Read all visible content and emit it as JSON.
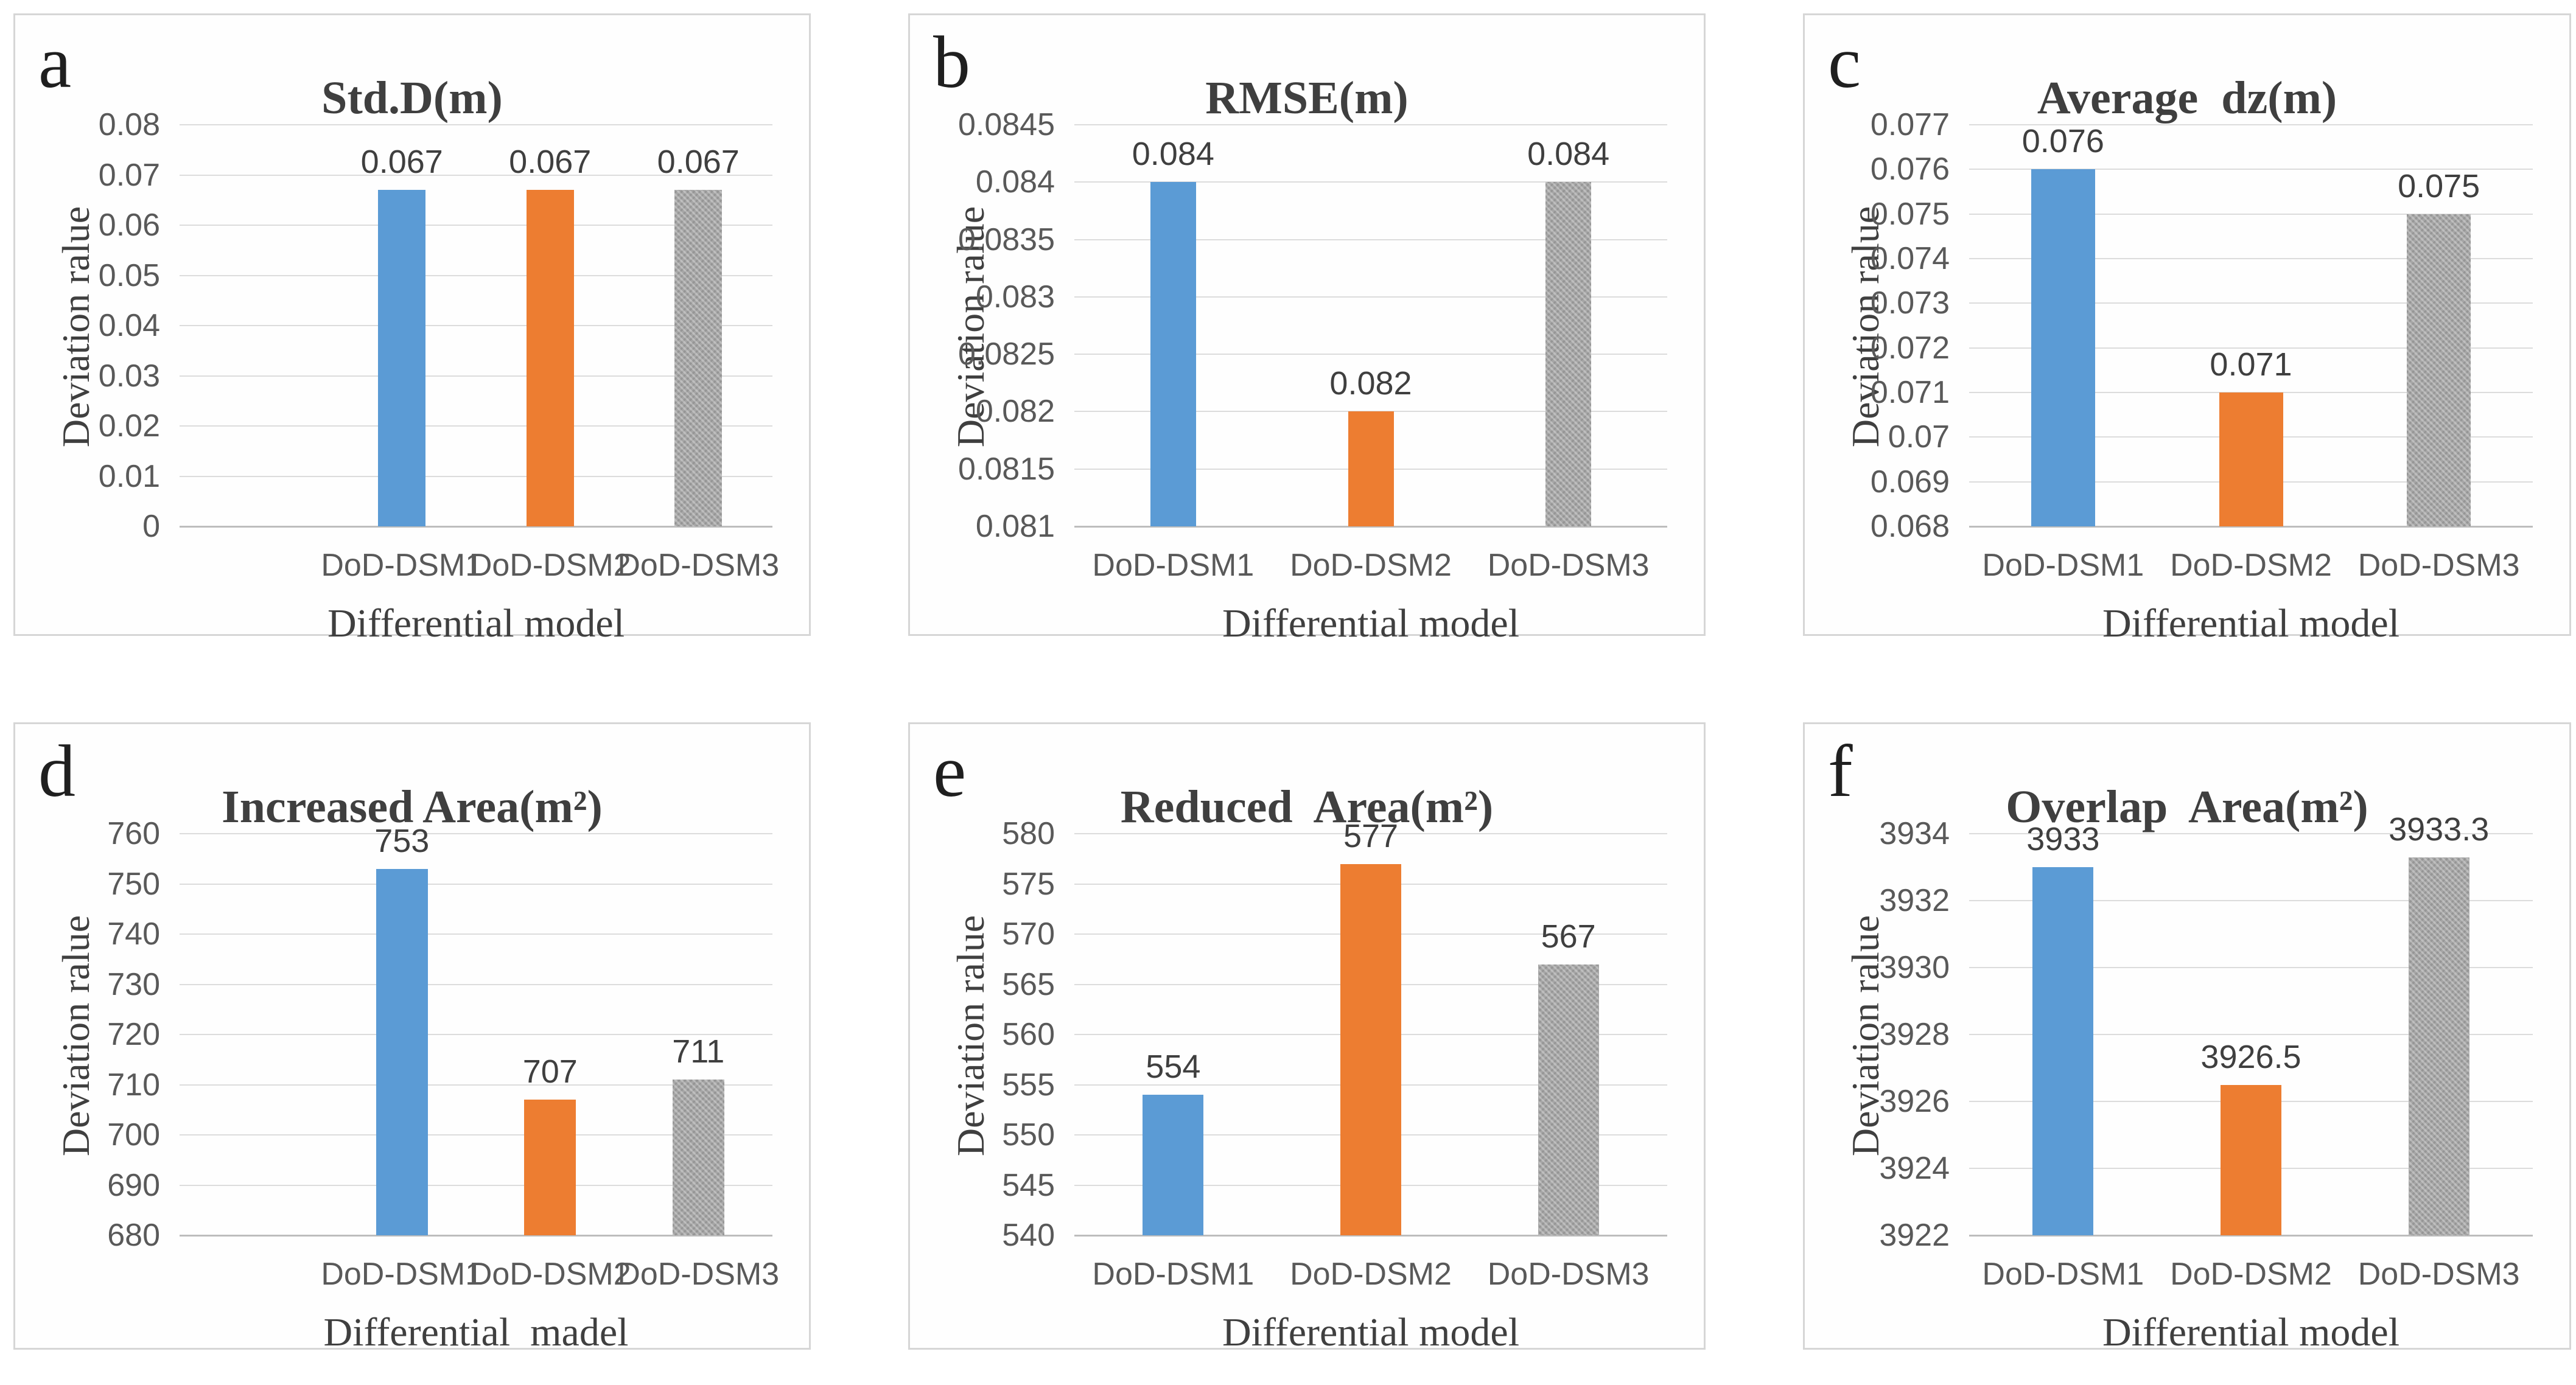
{
  "figure": {
    "categories": [
      "DoD-DSM1",
      "DoD-DSM2",
      "DoD-DSM3"
    ],
    "bar_colors": [
      "#5B9BD5",
      "#ED7D31",
      "#A6A6A6"
    ],
    "grid_color": "#DCDCDC",
    "axis_line_color": "#BDBDBD",
    "tick_text_color": "#595959",
    "title_text_color": "#3F3F3F"
  },
  "chart_data": [
    {
      "id": "a",
      "type": "bar",
      "letter": "a",
      "title": "Std.D(m)",
      "xlabel": "Differential model",
      "ylabel": "Deviation ralue",
      "categories": [
        "DoD-DSM1",
        "DoD-DSM2",
        "DoD-DSM3"
      ],
      "values": [
        0.067,
        0.067,
        0.067
      ],
      "value_labels": [
        "0.067",
        "0.067",
        "0.067"
      ],
      "ylim": [
        0,
        0.08
      ],
      "ytick_values": [
        0,
        0.01,
        0.02,
        0.03,
        0.04,
        0.05,
        0.06,
        0.07,
        0.08
      ],
      "ytick_labels": [
        "0",
        "0.01",
        "0.02",
        "0.03",
        "0.04",
        "0.05",
        "0.06",
        "0.07",
        "0.08"
      ],
      "grid": true,
      "legend": null
    },
    {
      "id": "b",
      "type": "bar",
      "letter": "b",
      "title": "RMSE(m)",
      "xlabel": "Differential model",
      "ylabel": "Deviation ralue",
      "categories": [
        "DoD-DSM1",
        "DoD-DSM2",
        "DoD-DSM3"
      ],
      "values": [
        0.084,
        0.082,
        0.084
      ],
      "value_labels": [
        "0.084",
        "0.082",
        "0.084"
      ],
      "ylim": [
        0.081,
        0.0845
      ],
      "ytick_values": [
        0.081,
        0.0815,
        0.082,
        0.0825,
        0.083,
        0.0835,
        0.084,
        0.0845
      ],
      "ytick_labels": [
        "0.081",
        "0.0815",
        "0.082",
        "0.0825",
        "0.083",
        "0.0835",
        "0.084",
        "0.0845"
      ],
      "grid": true,
      "legend": null
    },
    {
      "id": "c",
      "type": "bar",
      "letter": "c",
      "title": "Average  dz(m)",
      "xlabel": "Differential model",
      "ylabel": "Deviation ralue",
      "categories": [
        "DoD-DSM1",
        "DoD-DSM2",
        "DoD-DSM3"
      ],
      "values": [
        0.076,
        0.071,
        0.075
      ],
      "value_labels": [
        "0.076",
        "0.071",
        "0.075"
      ],
      "ylim": [
        0.068,
        0.077
      ],
      "ytick_values": [
        0.068,
        0.069,
        0.07,
        0.071,
        0.072,
        0.073,
        0.074,
        0.075,
        0.076,
        0.077
      ],
      "ytick_labels": [
        "0.068",
        "0.069",
        "0.07",
        "0.071",
        "0.072",
        "0.073",
        "0.074",
        "0.075",
        "0.076",
        "0.077"
      ],
      "grid": true,
      "legend": null
    },
    {
      "id": "d",
      "type": "bar",
      "letter": "d",
      "title": "Increased Area(m²)",
      "xlabel": "Differential  madel",
      "ylabel": "Deviation ralue",
      "categories": [
        "DoD-DSM1",
        "DoD-DSM2",
        "DoD-DSM3"
      ],
      "values": [
        753,
        707,
        711
      ],
      "value_labels": [
        "753",
        "707",
        "711"
      ],
      "ylim": [
        680,
        760
      ],
      "ytick_values": [
        680,
        690,
        700,
        710,
        720,
        730,
        740,
        750,
        760
      ],
      "ytick_labels": [
        "680",
        "690",
        "700",
        "710",
        "720",
        "730",
        "740",
        "750",
        "760"
      ],
      "grid": true,
      "legend": null
    },
    {
      "id": "e",
      "type": "bar",
      "letter": "e",
      "title": "Reduced  Area(m²)",
      "xlabel": "Differential model",
      "ylabel": "Deviation ralue",
      "categories": [
        "DoD-DSM1",
        "DoD-DSM2",
        "DoD-DSM3"
      ],
      "values": [
        554,
        577,
        567
      ],
      "value_labels": [
        "554",
        "577",
        "567"
      ],
      "ylim": [
        540,
        580
      ],
      "ytick_values": [
        540,
        545,
        550,
        555,
        560,
        565,
        570,
        575,
        580
      ],
      "ytick_labels": [
        "540",
        "545",
        "550",
        "555",
        "560",
        "565",
        "570",
        "575",
        "580"
      ],
      "grid": true,
      "legend": null
    },
    {
      "id": "f",
      "type": "bar",
      "letter": "f",
      "title": "Overlap  Area(m²)",
      "xlabel": "Differential model",
      "ylabel": "Deviation ralue",
      "categories": [
        "DoD-DSM1",
        "DoD-DSM2",
        "DoD-DSM3"
      ],
      "values": [
        3933,
        3926.5,
        3933.3
      ],
      "value_labels": [
        "3933",
        "3926.5",
        "3933.3"
      ],
      "ylim": [
        3922,
        3934
      ],
      "ytick_values": [
        3922,
        3924,
        3926,
        3928,
        3930,
        3932,
        3934
      ],
      "ytick_labels": [
        "3922",
        "3924",
        "3926",
        "3928",
        "3930",
        "3932",
        "3934"
      ],
      "grid": true,
      "legend": null
    }
  ]
}
